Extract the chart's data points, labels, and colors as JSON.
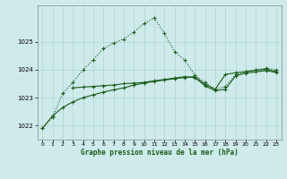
{
  "title": "Graphe pression niveau de la mer (hPa)",
  "bg_color": "#ceeaea",
  "grid_color": "#b0d4d4",
  "line_color": "#1a5c1a",
  "x_ticks": [
    0,
    1,
    2,
    3,
    4,
    5,
    6,
    7,
    8,
    9,
    10,
    11,
    12,
    13,
    14,
    15,
    16,
    17,
    18,
    19,
    20,
    21,
    22,
    23
  ],
  "y_ticks": [
    1022,
    1023,
    1024,
    1025
  ],
  "ylim": [
    1021.5,
    1026.3
  ],
  "xlim": [
    -0.5,
    23.5
  ],
  "line1_x": [
    0,
    1,
    2,
    3,
    4,
    5,
    6,
    7,
    8,
    9,
    10,
    11,
    12,
    13,
    14,
    15,
    16,
    17,
    18,
    19,
    20,
    21,
    22,
    23
  ],
  "line1_y": [
    1021.9,
    1022.3,
    1023.15,
    1023.55,
    1024.0,
    1024.35,
    1024.75,
    1024.95,
    1025.1,
    1025.35,
    1025.65,
    1025.85,
    1025.3,
    1024.65,
    1024.35,
    1023.8,
    1023.55,
    1023.3,
    1023.4,
    1023.82,
    1023.92,
    1024.0,
    1024.05,
    1024.0
  ],
  "line2_x": [
    3,
    4,
    5,
    6,
    7,
    8,
    9,
    10,
    11,
    12,
    13,
    14,
    15,
    16,
    17,
    18,
    19,
    20,
    21,
    22,
    23
  ],
  "line2_y": [
    1023.35,
    1023.38,
    1023.4,
    1023.43,
    1023.45,
    1023.5,
    1023.52,
    1023.55,
    1023.6,
    1023.65,
    1023.7,
    1023.75,
    1023.72,
    1023.42,
    1023.25,
    1023.3,
    1023.78,
    1023.88,
    1023.92,
    1023.97,
    1023.9
  ],
  "line3_x": [
    0,
    1,
    2,
    3,
    4,
    5,
    6,
    7,
    8,
    9,
    10,
    11,
    12,
    13,
    14,
    15,
    16,
    17,
    18,
    19,
    20,
    21,
    22,
    23
  ],
  "line3_y": [
    1021.9,
    1022.35,
    1022.65,
    1022.85,
    1023.0,
    1023.1,
    1023.2,
    1023.28,
    1023.35,
    1023.45,
    1023.52,
    1023.58,
    1023.63,
    1023.68,
    1023.72,
    1023.75,
    1023.48,
    1023.3,
    1023.83,
    1023.89,
    1023.93,
    1023.98,
    1024.02,
    1023.93
  ]
}
